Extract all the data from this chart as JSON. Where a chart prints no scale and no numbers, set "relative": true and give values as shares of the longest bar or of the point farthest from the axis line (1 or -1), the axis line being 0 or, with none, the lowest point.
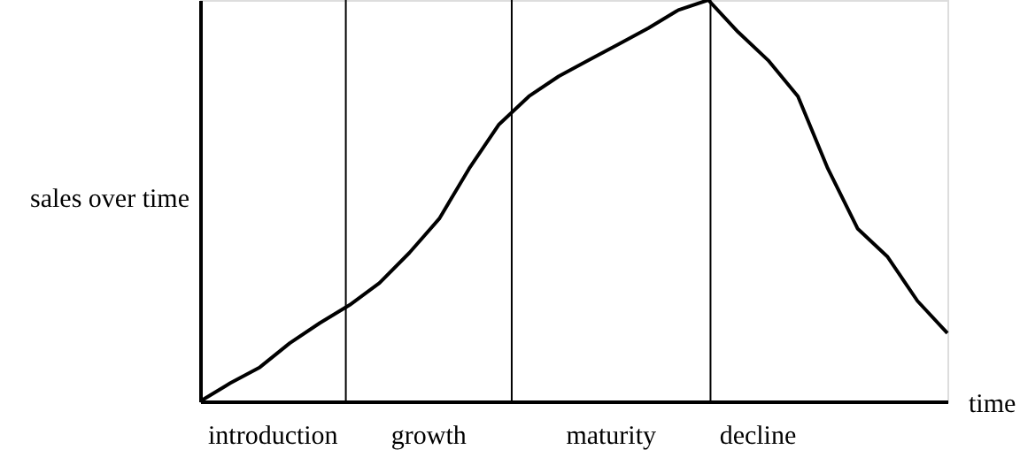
{
  "chart_data": {
    "type": "line",
    "relative": true,
    "xlabel": "time",
    "ylabel": "sales over time",
    "categories": [
      null,
      null,
      null,
      null,
      null,
      null,
      null,
      null,
      null,
      null,
      null,
      null,
      null,
      null,
      null,
      null,
      null,
      null,
      null,
      null,
      null,
      null,
      null,
      null,
      null,
      null
    ],
    "series": [
      {
        "color": "#000000",
        "values": [
          0,
          0.045,
          0.085,
          0.145,
          0.195,
          0.24,
          0.295,
          0.37,
          0.455,
          0.58,
          0.69,
          0.76,
          0.81,
          0.85,
          0.89,
          0.93,
          0.975,
          1.0,
          0.92,
          0.85,
          0.76,
          0.58,
          0.43,
          0.36,
          0.25,
          0.17
        ]
      }
    ],
    "grid": false,
    "marker": "none",
    "line_style": "solid",
    "annotations": [
      "introduction",
      "growth",
      "maturity",
      "decline"
    ]
  }
}
